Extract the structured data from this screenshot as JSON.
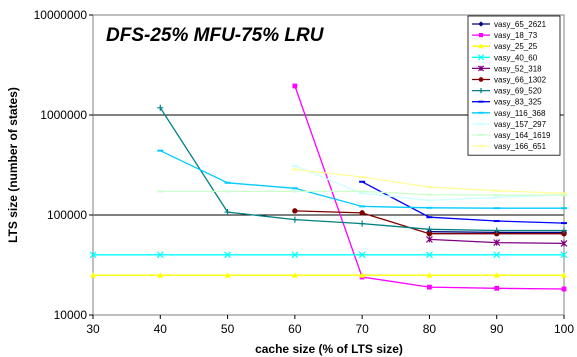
{
  "chart_data": {
    "type": "line",
    "title": "DFS-25% MFU-75% LRU",
    "xlabel": "cache size (% of LTS size)",
    "ylabel": "LTS size (number of states)",
    "xlim": [
      30,
      100
    ],
    "ylim": [
      10000,
      10000000
    ],
    "yscale": "log",
    "x_ticks": [
      30,
      40,
      50,
      60,
      70,
      80,
      90,
      100
    ],
    "y_ticks": [
      10000,
      100000,
      1000000,
      10000000
    ],
    "x_tick_labels": [
      "30",
      "40",
      "50",
      "60",
      "70",
      "80",
      "90",
      "100"
    ],
    "y_tick_labels": [
      "10000",
      "100000",
      "1000000",
      "10000000"
    ],
    "grid": "horizontal",
    "legend_position": "top-right",
    "series": [
      {
        "name": "vasy_65_2621",
        "color": "#000080",
        "marker": "diamond",
        "x": [
          80,
          90,
          100
        ],
        "values": [
          68000,
          67000,
          67000
        ]
      },
      {
        "name": "vasy_18_73",
        "color": "#ff00ff",
        "marker": "square",
        "x": [
          60,
          70,
          80,
          90,
          100
        ],
        "values": [
          1950000,
          24000,
          19000,
          18500,
          18200
        ]
      },
      {
        "name": "vasy_25_25",
        "color": "#ffff00",
        "marker": "triangle",
        "x": [
          30,
          40,
          50,
          60,
          70,
          80,
          90,
          100
        ],
        "values": [
          25000,
          25000,
          25000,
          25000,
          25000,
          25000,
          25000,
          25000
        ]
      },
      {
        "name": "vasy_40_60",
        "color": "#00ffff",
        "marker": "x",
        "x": [
          30,
          40,
          50,
          60,
          70,
          80,
          90,
          100
        ],
        "values": [
          40000,
          40000,
          40000,
          40000,
          40000,
          40000,
          40000,
          40000
        ]
      },
      {
        "name": "vasy_52_318",
        "color": "#800080",
        "marker": "star",
        "x": [
          80,
          90,
          100
        ],
        "values": [
          57000,
          53000,
          52000
        ]
      },
      {
        "name": "vasy_66_1302",
        "color": "#800000",
        "marker": "circle",
        "x": [
          60,
          70,
          80,
          90,
          100
        ],
        "values": [
          110000,
          105000,
          65000,
          65000,
          65000
        ]
      },
      {
        "name": "vasy_69_520",
        "color": "#008080",
        "marker": "plus",
        "x": [
          40,
          50,
          60,
          70,
          80,
          90,
          100
        ],
        "values": [
          1180000,
          107000,
          90000,
          82000,
          72000,
          70000,
          70000
        ]
      },
      {
        "name": "vasy_83_325",
        "color": "#0000ff",
        "marker": "dash",
        "x": [
          70,
          80,
          90,
          100
        ],
        "values": [
          215000,
          95000,
          87000,
          83000
        ]
      },
      {
        "name": "vasy_116_368",
        "color": "#00ccff",
        "marker": "dash",
        "x": [
          40,
          50,
          60,
          70,
          80,
          90,
          100
        ],
        "values": [
          440000,
          210000,
          185000,
          122000,
          118000,
          117000,
          117000
        ]
      },
      {
        "name": "vasy_157_297",
        "color": "#ccffff",
        "marker": "dash",
        "x": [
          60,
          70,
          80,
          90,
          100
        ],
        "values": [
          310000,
          165000,
          140000,
          150000,
          160000
        ]
      },
      {
        "name": "vasy_164_1619",
        "color": "#ccffcc",
        "marker": "dash",
        "x": [
          40,
          50,
          60,
          70,
          80,
          90,
          100
        ],
        "values": [
          172000,
          172000,
          172000,
          172000,
          160000,
          158000,
          158000
        ]
      },
      {
        "name": "vasy_166_651",
        "color": "#ffff99",
        "marker": "dash",
        "x": [
          60,
          70,
          80,
          90,
          100
        ],
        "values": [
          285000,
          240000,
          190000,
          175000,
          165000
        ]
      }
    ]
  }
}
